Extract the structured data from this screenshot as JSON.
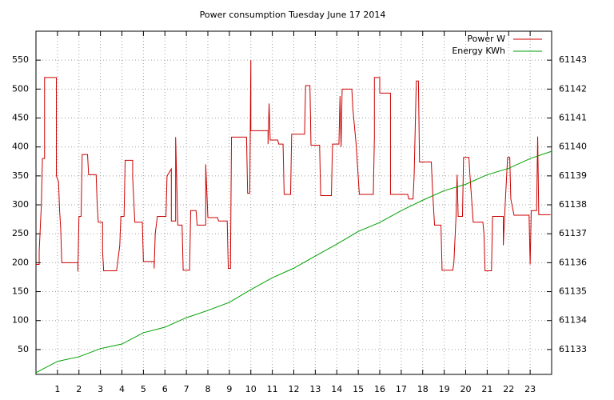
{
  "chart_data": {
    "type": "line",
    "title": "Power consumption Tuesday June 17 2014",
    "xlim": [
      0,
      24
    ],
    "xticks": [
      1,
      2,
      3,
      4,
      5,
      6,
      7,
      8,
      9,
      10,
      11,
      12,
      13,
      14,
      15,
      16,
      17,
      18,
      19,
      20,
      21,
      22,
      23
    ],
    "ylim": [
      7,
      600
    ],
    "yticks": [
      50,
      100,
      150,
      200,
      250,
      300,
      350,
      400,
      450,
      500,
      550
    ],
    "y2lim": [
      61132.14,
      61144
    ],
    "y2ticks": [
      61133,
      61134,
      61135,
      61136,
      61137,
      61138,
      61139,
      61140,
      61141,
      61142,
      61143
    ],
    "grid": true,
    "legend": "top-right",
    "series": [
      {
        "name": "Power W",
        "color": "#cc0000",
        "x": [
          0,
          0.15,
          0.15,
          0.25,
          0.3,
          0.4,
          0.4,
          0.95,
          0.95,
          1.05,
          1.1,
          1.15,
          1.2,
          1.95,
          1.95,
          2,
          2.1,
          2.15,
          2.4,
          2.45,
          2.8,
          2.85,
          2.9,
          3.1,
          3.1,
          3.15,
          3.75,
          3.8,
          3.9,
          3.95,
          4.1,
          4.15,
          4.5,
          4.5,
          4.6,
          4.95,
          5,
          5.5,
          5.5,
          5.55,
          5.65,
          6.05,
          6.1,
          6.3,
          6.3,
          6.5,
          6.5,
          6.6,
          6.8,
          6.85,
          7.15,
          7.2,
          7.45,
          7.5,
          7.9,
          7.9,
          8,
          8.45,
          8.5,
          8.9,
          8.95,
          9.05,
          9.1,
          9.8,
          9.85,
          9.95,
          10,
          10,
          10.8,
          10.8,
          10.85,
          10.9,
          11.25,
          11.3,
          11.5,
          11.55,
          11.85,
          11.9,
          12.5,
          12.55,
          12.75,
          12.8,
          13.2,
          13.25,
          13.75,
          13.8,
          14.1,
          14.15,
          14.2,
          14.25,
          14.7,
          14.75,
          14.9,
          15.05,
          15.7,
          15.75,
          15.75,
          16,
          16,
          16.5,
          16.5,
          17.3,
          17.35,
          17.55,
          17.6,
          17.7,
          17.8,
          17.85,
          18.4,
          18.45,
          18.55,
          18.85,
          18.9,
          19.4,
          19.45,
          19.55,
          19.6,
          19.65,
          19.85,
          19.9,
          20.15,
          20.2,
          20.35,
          20.8,
          20.85,
          20.9,
          21.2,
          21.25,
          21.75,
          21.75,
          21.85,
          21.95,
          22.05,
          22.1,
          22.25,
          22.95,
          23,
          23.05,
          23.3,
          23.35,
          23.4,
          23.95
        ],
        "values": [
          197,
          197,
          220,
          300,
          380,
          380,
          520,
          520,
          350,
          340,
          290,
          260,
          200,
          200,
          185,
          280,
          280,
          387,
          387,
          352,
          352,
          300,
          270,
          270,
          220,
          186,
          186,
          200,
          230,
          280,
          280,
          377,
          377,
          347,
          270,
          270,
          202,
          202,
          190,
          250,
          280,
          280,
          350,
          362,
          272,
          272,
          417,
          265,
          265,
          187,
          187,
          290,
          290,
          265,
          265,
          370,
          278,
          278,
          272,
          272,
          190,
          190,
          417,
          417,
          320,
          320,
          550,
          428,
          428,
          405,
          475,
          412,
          412,
          405,
          405,
          318,
          318,
          422,
          422,
          506,
          506,
          403,
          403,
          316,
          316,
          405,
          405,
          488,
          400,
          500,
          500,
          465,
          405,
          318,
          318,
          415,
          520,
          520,
          493,
          493,
          318,
          318,
          310,
          310,
          350,
          514,
          514,
          374,
          374,
          330,
          265,
          265,
          187,
          187,
          200,
          280,
          352,
          280,
          280,
          382,
          382,
          350,
          270,
          270,
          250,
          186,
          186,
          280,
          280,
          230,
          310,
          382,
          382,
          310,
          282,
          282,
          197,
          290,
          290,
          418,
          283,
          283
        ]
      },
      {
        "name": "Energy KWh",
        "color": "#00a000",
        "axis": "y2",
        "x": [
          0,
          1,
          2,
          3,
          4,
          5,
          6,
          7,
          8,
          9,
          10,
          11,
          12,
          13,
          14,
          15,
          16,
          17,
          18,
          19,
          20,
          21,
          22,
          23,
          24
        ],
        "values": [
          61132.2,
          61132.59,
          61132.75,
          61133.03,
          61133.19,
          61133.58,
          61133.77,
          61134.1,
          61134.35,
          61134.63,
          61135.07,
          61135.48,
          61135.81,
          61136.23,
          61136.64,
          61137.08,
          61137.39,
          61137.8,
          61138.16,
          61138.49,
          61138.71,
          61139.04,
          61139.26,
          61139.6,
          61139.85
        ]
      }
    ]
  }
}
